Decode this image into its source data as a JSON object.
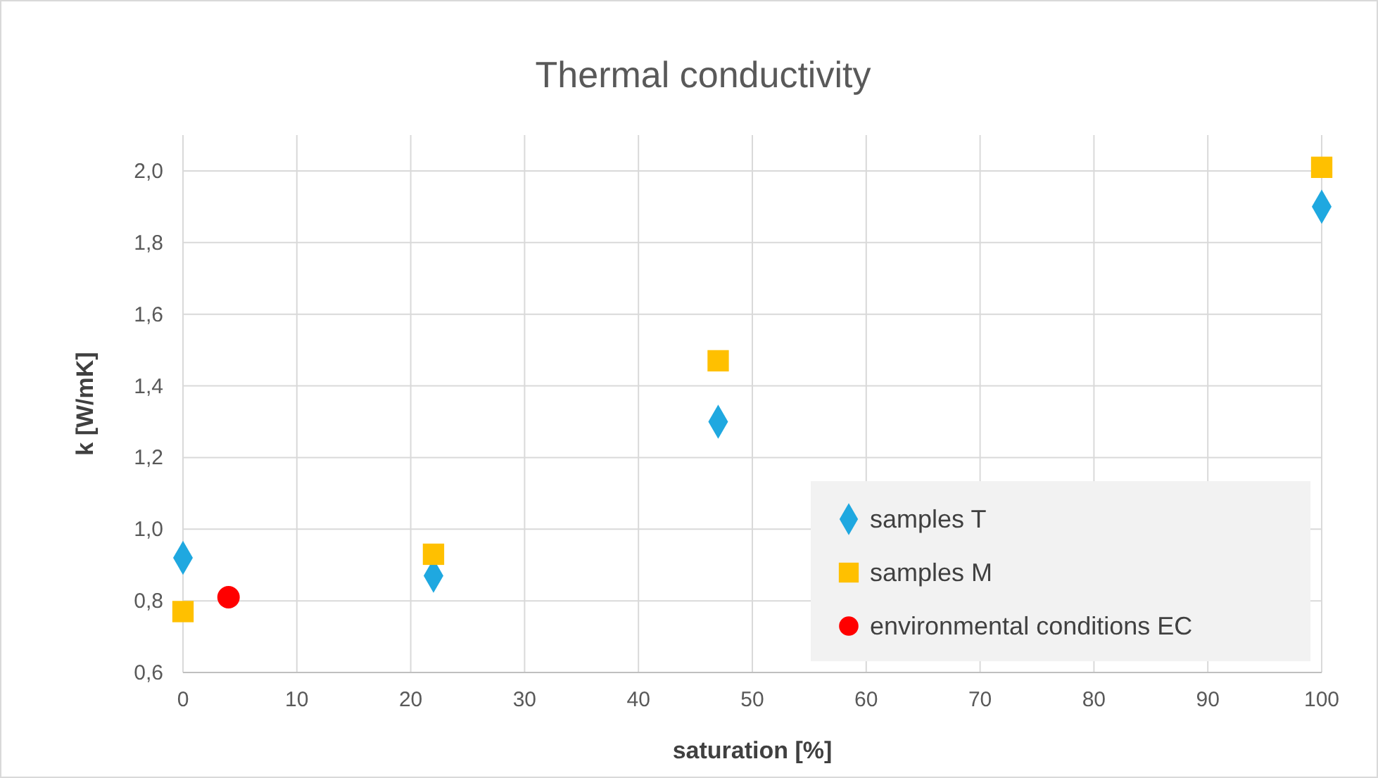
{
  "chart_data": {
    "type": "scatter",
    "title": "Thermal conductivity",
    "xlabel": "saturation [%]",
    "ylabel": "k [W/mK]",
    "xlim": [
      0,
      100
    ],
    "xticks": [
      0,
      10,
      20,
      30,
      40,
      50,
      60,
      70,
      80,
      90,
      100
    ],
    "ylim": [
      0.6,
      2.1
    ],
    "yticks": [
      {
        "value": 0.6,
        "label": "0,6"
      },
      {
        "value": 0.8,
        "label": "0,8"
      },
      {
        "value": 1.0,
        "label": "1,0"
      },
      {
        "value": 1.2,
        "label": "1,2"
      },
      {
        "value": 1.4,
        "label": "1,4"
      },
      {
        "value": 1.6,
        "label": "1,6"
      },
      {
        "value": 1.8,
        "label": "1,8"
      },
      {
        "value": 2.0,
        "label": "2,0"
      }
    ],
    "grid": true,
    "legend": "bottom right",
    "series": [
      {
        "name": "samples T",
        "color": "#1fa8e0",
        "marker": "diamond",
        "x": [
          0,
          22,
          47,
          100
        ],
        "values": [
          0.92,
          0.87,
          1.3,
          1.9
        ]
      },
      {
        "name": "samples M",
        "color": "#ffc000",
        "marker": "square",
        "x": [
          0,
          22,
          47,
          100
        ],
        "values": [
          0.77,
          0.93,
          1.47,
          2.01
        ]
      },
      {
        "name": "environmental conditions EC",
        "color": "#ff0000",
        "marker": "circle",
        "x": [
          4
        ],
        "values": [
          0.81
        ]
      }
    ]
  }
}
